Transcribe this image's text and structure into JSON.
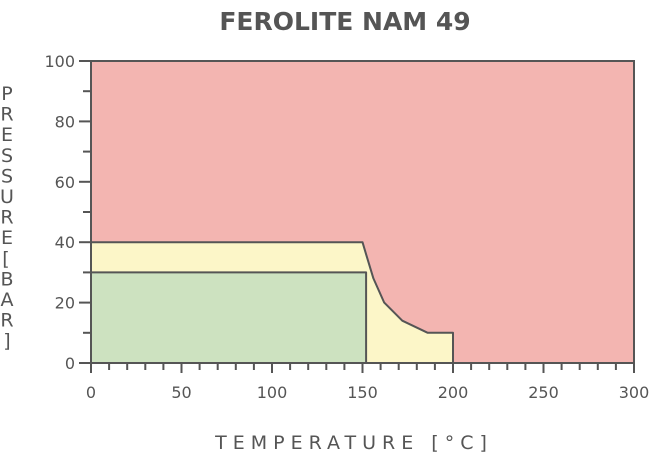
{
  "chart_data": {
    "type": "area",
    "title": "FEROLITE NAM 49",
    "xlabel": "TEMPERATURE [°C]",
    "ylabel": "PRESSURE [BAR]",
    "xlim": [
      0,
      300
    ],
    "ylim": [
      0,
      100
    ],
    "x_ticks": [
      0,
      50,
      100,
      150,
      200,
      250,
      300
    ],
    "y_ticks": [
      0,
      20,
      40,
      60,
      80,
      100
    ],
    "x_minor_step": 10,
    "y_minor_step": 10,
    "grid": false,
    "regions": [
      {
        "color": "#f3b5b1",
        "boundary": [
          [
            0,
            0
          ],
          [
            300,
            0
          ],
          [
            300,
            100
          ],
          [
            0,
            100
          ]
        ]
      },
      {
        "color": "#fcf6c8",
        "boundary": [
          [
            0,
            0
          ],
          [
            200,
            0
          ],
          [
            200,
            10
          ],
          [
            186,
            10
          ],
          [
            172,
            14
          ],
          [
            162,
            20
          ],
          [
            156,
            28
          ],
          [
            152,
            36
          ],
          [
            150,
            40
          ],
          [
            0,
            40
          ]
        ]
      },
      {
        "color": "#cde2c0",
        "boundary": [
          [
            0,
            0
          ],
          [
            152,
            0
          ],
          [
            152,
            30
          ],
          [
            0,
            30
          ]
        ]
      }
    ],
    "colors": {
      "outline": "#555555",
      "text": "#555555"
    }
  }
}
